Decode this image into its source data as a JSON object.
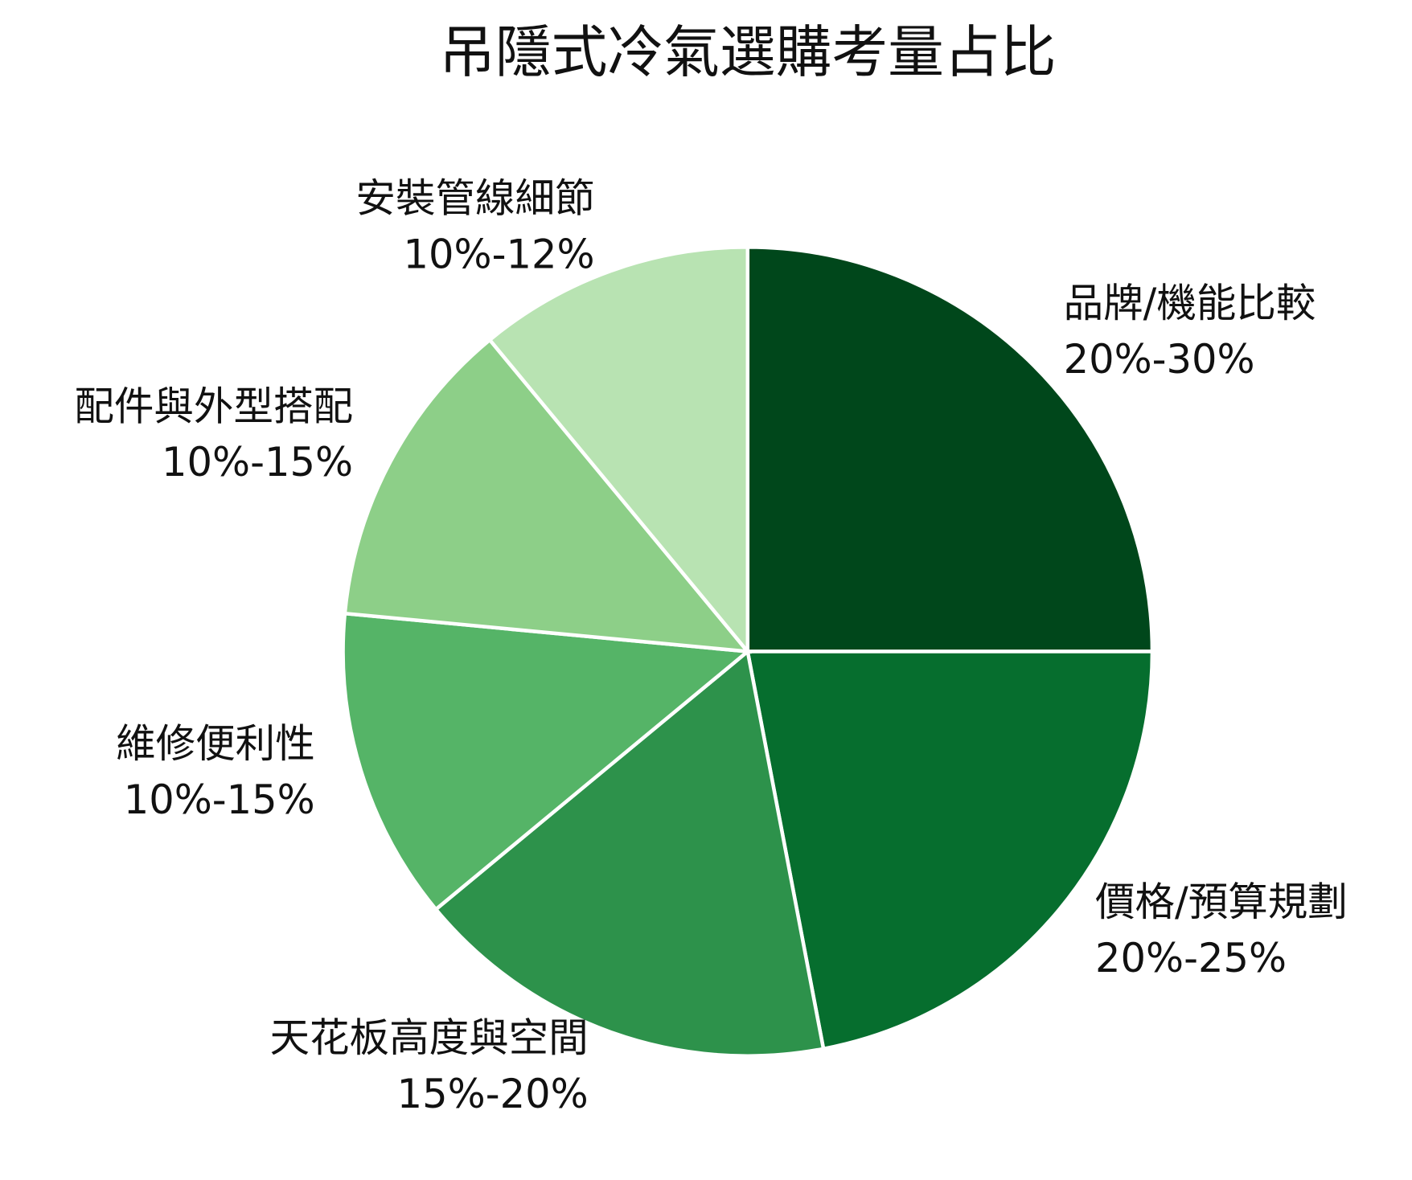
{
  "chart_data": {
    "type": "pie",
    "title": "吊隱式冷氣選購考量占比",
    "categories": [
      "品牌/機能比較",
      "價格/預算規劃",
      "天花板高度與空間",
      "維修便利性",
      "配件與外型搭配",
      "安裝管線細節"
    ],
    "values": [
      25,
      22,
      17,
      12.5,
      12.5,
      11
    ],
    "value_labels": [
      "20%-30%",
      "20%-25%",
      "15%-20%",
      "10%-15%",
      "10%-15%",
      "10%-12%"
    ],
    "colors": [
      "#00471b",
      "#066e2e",
      "#2d924b",
      "#55b467",
      "#8dcf88",
      "#b8e3b2"
    ]
  }
}
